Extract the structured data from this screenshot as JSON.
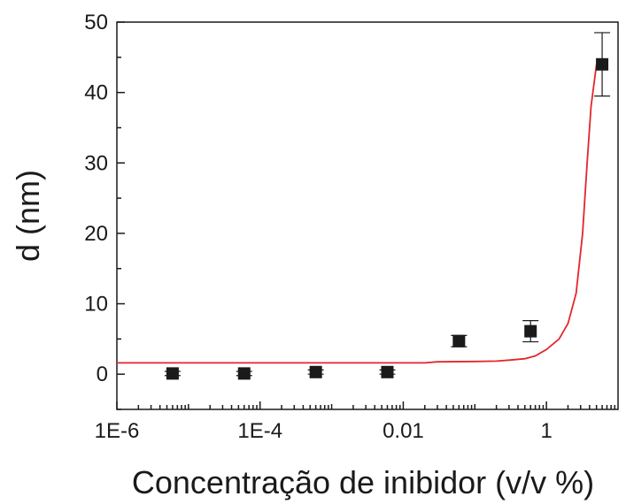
{
  "chart_data": {
    "type": "scatter",
    "title": "",
    "xlabel": "Concentração de inibidor (v/v %)",
    "ylabel": "d (nm)",
    "x_scale": "log",
    "xlim": [
      1e-06,
      10
    ],
    "ylim": [
      -5,
      50
    ],
    "x_ticks": [
      {
        "value": 1e-06,
        "label": "1E-6"
      },
      {
        "value": 0.0001,
        "label": "1E-4"
      },
      {
        "value": 0.01,
        "label": "0.01"
      },
      {
        "value": 1,
        "label": "1"
      }
    ],
    "y_ticks": [
      {
        "value": 0,
        "label": "0"
      },
      {
        "value": 10,
        "label": "10"
      },
      {
        "value": 20,
        "label": "20"
      },
      {
        "value": 30,
        "label": "30"
      },
      {
        "value": 40,
        "label": "40"
      },
      {
        "value": 50,
        "label": "50"
      }
    ],
    "grid": false,
    "points": [
      {
        "x": 6e-06,
        "y": 0.1,
        "err": 0.3
      },
      {
        "x": 6e-05,
        "y": 0.1,
        "err": 0.3
      },
      {
        "x": 0.0006,
        "y": 0.3,
        "err": 0.3
      },
      {
        "x": 0.006,
        "y": 0.3,
        "err": 0.3
      },
      {
        "x": 0.06,
        "y": 4.7,
        "err": 0.8
      },
      {
        "x": 0.6,
        "y": 6.1,
        "err": 1.5
      },
      {
        "x": 6,
        "y": 44.0,
        "err": 4.5
      }
    ],
    "fit_line": {
      "color": "#e3262b",
      "points": [
        [
          1e-06,
          1.6
        ],
        [
          0.02,
          1.6
        ],
        [
          0.03,
          1.75
        ],
        [
          0.1,
          1.8
        ],
        [
          0.2,
          1.85
        ],
        [
          0.3,
          2.0
        ],
        [
          0.5,
          2.2
        ],
        [
          0.7,
          2.6
        ],
        [
          1.0,
          3.5
        ],
        [
          1.5,
          5.0
        ],
        [
          2.0,
          7.2
        ],
        [
          2.6,
          11.5
        ],
        [
          3.2,
          20.0
        ],
        [
          3.7,
          30.0
        ],
        [
          4.2,
          38.0
        ],
        [
          5.0,
          44.0
        ]
      ]
    },
    "marker_color": "#1a1a1a"
  }
}
